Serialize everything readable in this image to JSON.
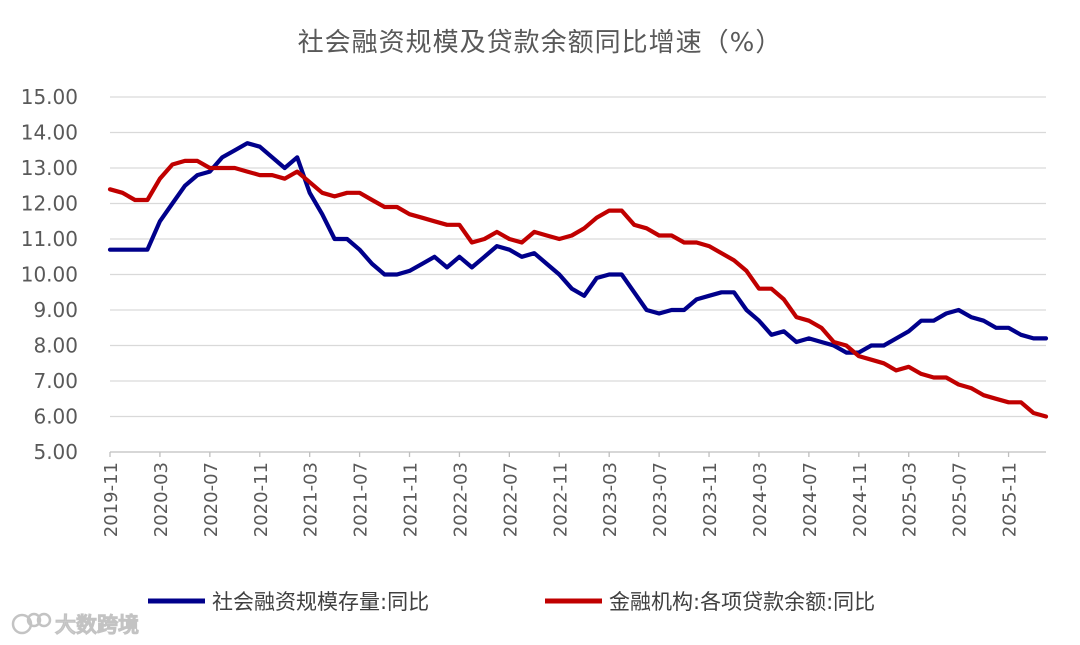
{
  "chart_data": {
    "type": "line",
    "title": "社会融资规模及贷款余额同比增速（%）",
    "xlabel": "",
    "ylabel": "",
    "ylim": [
      5,
      15
    ],
    "yticks": [
      "5.00",
      "6.00",
      "7.00",
      "8.00",
      "9.00",
      "10.00",
      "11.00",
      "12.00",
      "13.00",
      "14.00",
      "15.00"
    ],
    "x_tick_labels": [
      "2019-11",
      "2020-03",
      "2020-07",
      "2020-11",
      "2021-03",
      "2021-07",
      "2021-11",
      "2022-03",
      "2022-07",
      "2022-11",
      "2023-03",
      "2023-07",
      "2023-11",
      "2024-03",
      "2024-07",
      "2024-11",
      "2025-03",
      "2025-07",
      "2025-11"
    ],
    "x_start": "2019-11",
    "x_end": "2026-02",
    "legend_position": "bottom",
    "grid": true,
    "series": [
      {
        "name": "社会融资规模存量:同比",
        "color": "#00008B",
        "values": [
          10.7,
          10.7,
          10.7,
          10.7,
          11.5,
          12.0,
          12.5,
          12.8,
          12.9,
          13.3,
          13.5,
          13.7,
          13.6,
          13.3,
          13.0,
          13.3,
          12.3,
          11.7,
          11.0,
          11.0,
          10.7,
          10.3,
          10.0,
          10.0,
          10.1,
          10.3,
          10.5,
          10.2,
          10.5,
          10.2,
          10.5,
          10.8,
          10.7,
          10.5,
          10.6,
          10.3,
          10.0,
          9.6,
          9.4,
          9.9,
          10.0,
          10.0,
          9.5,
          9.0,
          8.9,
          9.0,
          9.0,
          9.3,
          9.4,
          9.5,
          9.5,
          9.0,
          8.7,
          8.3,
          8.4,
          8.1,
          8.2,
          8.1,
          8.0,
          7.8,
          7.8,
          8.0,
          8.0,
          8.2,
          8.4,
          8.7,
          8.7,
          8.9,
          9.0,
          8.8,
          8.7,
          8.5,
          8.5,
          8.3,
          8.2,
          8.2
        ]
      },
      {
        "name": "金融机构:各项贷款余额:同比",
        "color": "#C00000",
        "values": [
          12.4,
          12.3,
          12.1,
          12.1,
          12.7,
          13.1,
          13.2,
          13.2,
          13.0,
          13.0,
          13.0,
          12.9,
          12.8,
          12.8,
          12.7,
          12.9,
          12.6,
          12.3,
          12.2,
          12.3,
          12.3,
          12.1,
          11.9,
          11.9,
          11.7,
          11.6,
          11.5,
          11.4,
          11.4,
          10.9,
          11.0,
          11.2,
          11.0,
          10.9,
          11.2,
          11.1,
          11.0,
          11.1,
          11.3,
          11.6,
          11.8,
          11.8,
          11.4,
          11.3,
          11.1,
          11.1,
          10.9,
          10.9,
          10.8,
          10.6,
          10.4,
          10.1,
          9.6,
          9.6,
          9.3,
          8.8,
          8.7,
          8.5,
          8.1,
          8.0,
          7.7,
          7.6,
          7.5,
          7.3,
          7.4,
          7.2,
          7.1,
          7.1,
          6.9,
          6.8,
          6.6,
          6.5,
          6.4,
          6.4,
          6.1,
          6.0
        ]
      }
    ]
  },
  "watermark": {
    "icon": "logo-icon",
    "text": "大数跨境"
  }
}
